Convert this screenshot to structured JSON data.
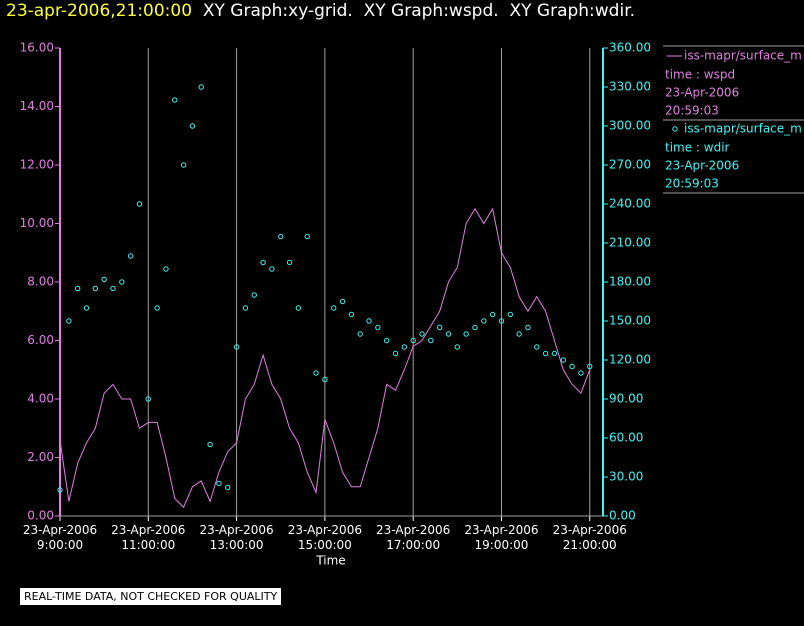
{
  "chart_data": {
    "type": "line",
    "title": "23-apr-2006,21:00:00",
    "subtitle": "XY Graph:xy-grid.  XY Graph:wspd.  XY Graph:wdir.",
    "x_label": "Time",
    "note": "REAL-TIME DATA, NOT CHECKED FOR QUALITY",
    "grid": true,
    "x": [
      9.0,
      9.2,
      9.4,
      9.6,
      9.8,
      10.0,
      10.2,
      10.4,
      10.6,
      10.8,
      11.0,
      11.2,
      11.4,
      11.6,
      11.8,
      12.0,
      12.2,
      12.4,
      12.6,
      12.8,
      13.0,
      13.2,
      13.4,
      13.6,
      13.8,
      14.0,
      14.2,
      14.4,
      14.6,
      14.8,
      15.0,
      15.2,
      15.4,
      15.6,
      15.8,
      16.0,
      16.2,
      16.4,
      16.6,
      16.8,
      17.0,
      17.2,
      17.4,
      17.6,
      17.8,
      18.0,
      18.2,
      18.4,
      18.6,
      18.8,
      19.0,
      19.2,
      19.4,
      19.6,
      19.8,
      20.0,
      20.2,
      20.4,
      20.6,
      20.8,
      21.0
    ],
    "xlim": [
      9,
      21.3
    ],
    "xticks": [
      {
        "value": 9,
        "label": "23-Apr-2006 9:00:00"
      },
      {
        "value": 11,
        "label": "23-Apr-2006 11:00:00"
      },
      {
        "value": 13,
        "label": "23-Apr-2006 13:00:00"
      },
      {
        "value": 15,
        "label": "23-Apr-2006 15:00:00"
      },
      {
        "value": 17,
        "label": "23-Apr-2006 17:00:00"
      },
      {
        "value": 19,
        "label": "23-Apr-2006 19:00:00"
      },
      {
        "value": 21,
        "label": "23-Apr-2006 21:00:00"
      }
    ],
    "ylim": [
      0,
      16
    ],
    "yticks": [
      {
        "value": 0,
        "label": "0.00"
      },
      {
        "value": 2,
        "label": "2.00"
      },
      {
        "value": 4,
        "label": "4.00"
      },
      {
        "value": 6,
        "label": "6.00"
      },
      {
        "value": 8,
        "label": "8.00"
      },
      {
        "value": 10,
        "label": "10.00"
      },
      {
        "value": 12,
        "label": "12.00"
      },
      {
        "value": 14,
        "label": "14.00"
      },
      {
        "value": 16,
        "label": "16.00"
      }
    ],
    "y2lim": [
      0,
      360
    ],
    "y2ticks": [
      {
        "value": 0,
        "label": "0.00"
      },
      {
        "value": 30,
        "label": "30.00"
      },
      {
        "value": 60,
        "label": "60.00"
      },
      {
        "value": 90,
        "label": "90.00"
      },
      {
        "value": 120,
        "label": "120.00"
      },
      {
        "value": 150,
        "label": "150.00"
      },
      {
        "value": 180,
        "label": "180.00"
      },
      {
        "value": 210,
        "label": "210.00"
      },
      {
        "value": 240,
        "label": "240.00"
      },
      {
        "value": 270,
        "label": "270.00"
      },
      {
        "value": 300,
        "label": "300.00"
      },
      {
        "value": 330,
        "label": "330.00"
      },
      {
        "value": 360,
        "label": "360.00"
      }
    ],
    "series": [
      {
        "name": "iss-mapr/surface_m",
        "type": "line",
        "color": "#e27ee2",
        "legend_lines": [
          "time : wspd",
          "23-Apr-2006",
          "20:59:03"
        ],
        "values": [
          2.6,
          0.5,
          1.8,
          2.5,
          3.0,
          4.2,
          4.5,
          4.0,
          4.0,
          3.0,
          3.2,
          3.2,
          2.0,
          0.6,
          0.3,
          1.0,
          1.2,
          0.5,
          1.5,
          2.2,
          2.5,
          4.0,
          4.5,
          5.5,
          4.5,
          4.0,
          3.0,
          2.5,
          1.5,
          0.8,
          3.3,
          2.5,
          1.5,
          1.0,
          1.0,
          2.0,
          3.0,
          4.5,
          4.3,
          5.0,
          5.8,
          6.0,
          6.5,
          7.0,
          8.0,
          8.5,
          10.0,
          10.5,
          10.0,
          10.5,
          9.0,
          8.5,
          7.5,
          7.0,
          7.5,
          7.0,
          6.0,
          5.0,
          4.5,
          4.2,
          5.0
        ]
      },
      {
        "name": "iss-mapr/surface_m",
        "type": "scatter",
        "axis": "y2",
        "color": "#3ff5f5",
        "legend_lines": [
          "time : wdir",
          "23-Apr-2006",
          "20:59:03"
        ],
        "values": [
          20,
          150,
          175,
          160,
          175,
          182,
          175,
          180,
          200,
          240,
          90,
          160,
          190,
          320,
          270,
          300,
          330,
          55,
          25,
          22,
          130,
          160,
          170,
          195,
          190,
          215,
          195,
          160,
          215,
          110,
          105,
          160,
          165,
          155,
          140,
          150,
          145,
          135,
          125,
          130,
          135,
          140,
          135,
          145,
          140,
          130,
          140,
          145,
          150,
          155,
          150,
          155,
          140,
          145,
          130,
          125,
          125,
          120,
          115,
          110,
          115
        ]
      }
    ]
  }
}
